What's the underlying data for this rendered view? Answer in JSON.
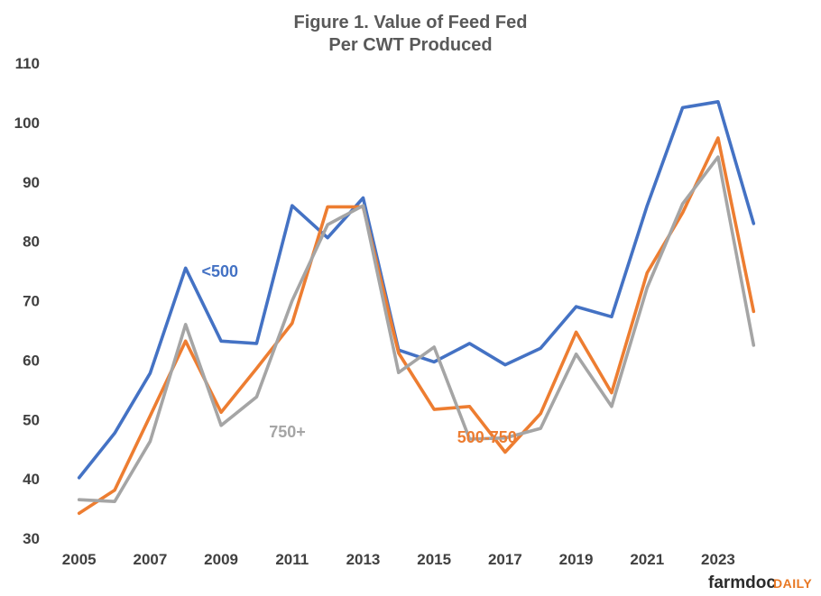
{
  "chart_data": {
    "type": "line",
    "title_line1": "Figure  1. Value of Feed Fed",
    "title_line2": "Per CWT Produced",
    "xlabel": "",
    "ylabel": "",
    "x": [
      2005,
      2006,
      2007,
      2008,
      2009,
      2010,
      2011,
      2012,
      2013,
      2014,
      2015,
      2016,
      2017,
      2018,
      2019,
      2020,
      2021,
      2022,
      2023,
      2024
    ],
    "x_tick_labels": [
      "2005",
      "2007",
      "2009",
      "2011",
      "2013",
      "2015",
      "2017",
      "2019",
      "2021",
      "2023"
    ],
    "y_tick_labels": [
      "30",
      "40",
      "50",
      "60",
      "70",
      "80",
      "90",
      "100",
      "110"
    ],
    "ylim": [
      30,
      110
    ],
    "xlim": [
      2004.55,
      2024.45
    ],
    "grid": false,
    "series": [
      {
        "name": "<500",
        "color": "#4472c4",
        "values": [
          40.2,
          47.7,
          57.8,
          75.5,
          63.2,
          62.8,
          86.0,
          80.6,
          87.3,
          61.7,
          59.7,
          62.8,
          59.2,
          62.0,
          69.0,
          67.3,
          86.0,
          102.5,
          103.5,
          83.0
        ],
        "label_at": [
          2008.45,
          74.0
        ]
      },
      {
        "name": "500-750",
        "color": "#ed7d31",
        "values": [
          34.2,
          38.1,
          50.6,
          63.2,
          51.2,
          58.6,
          66.2,
          85.8,
          85.8,
          61.2,
          51.7,
          52.2,
          44.5,
          51.0,
          64.7,
          54.5,
          74.7,
          84.8,
          97.4,
          68.2
        ],
        "label_at": [
          2015.65,
          46.1
        ]
      },
      {
        "name": "750+",
        "color": "#a5a5a5",
        "values": [
          36.5,
          36.2,
          46.3,
          66.0,
          49.0,
          53.8,
          70.0,
          82.8,
          86.0,
          57.9,
          62.2,
          46.7,
          46.9,
          48.5,
          61.0,
          52.2,
          72.2,
          86.3,
          94.2,
          62.5
        ],
        "label_at": [
          2010.35,
          47.0
        ]
      }
    ],
    "logo": {
      "part1": "farmdoc",
      "part2": "DAILY"
    }
  }
}
